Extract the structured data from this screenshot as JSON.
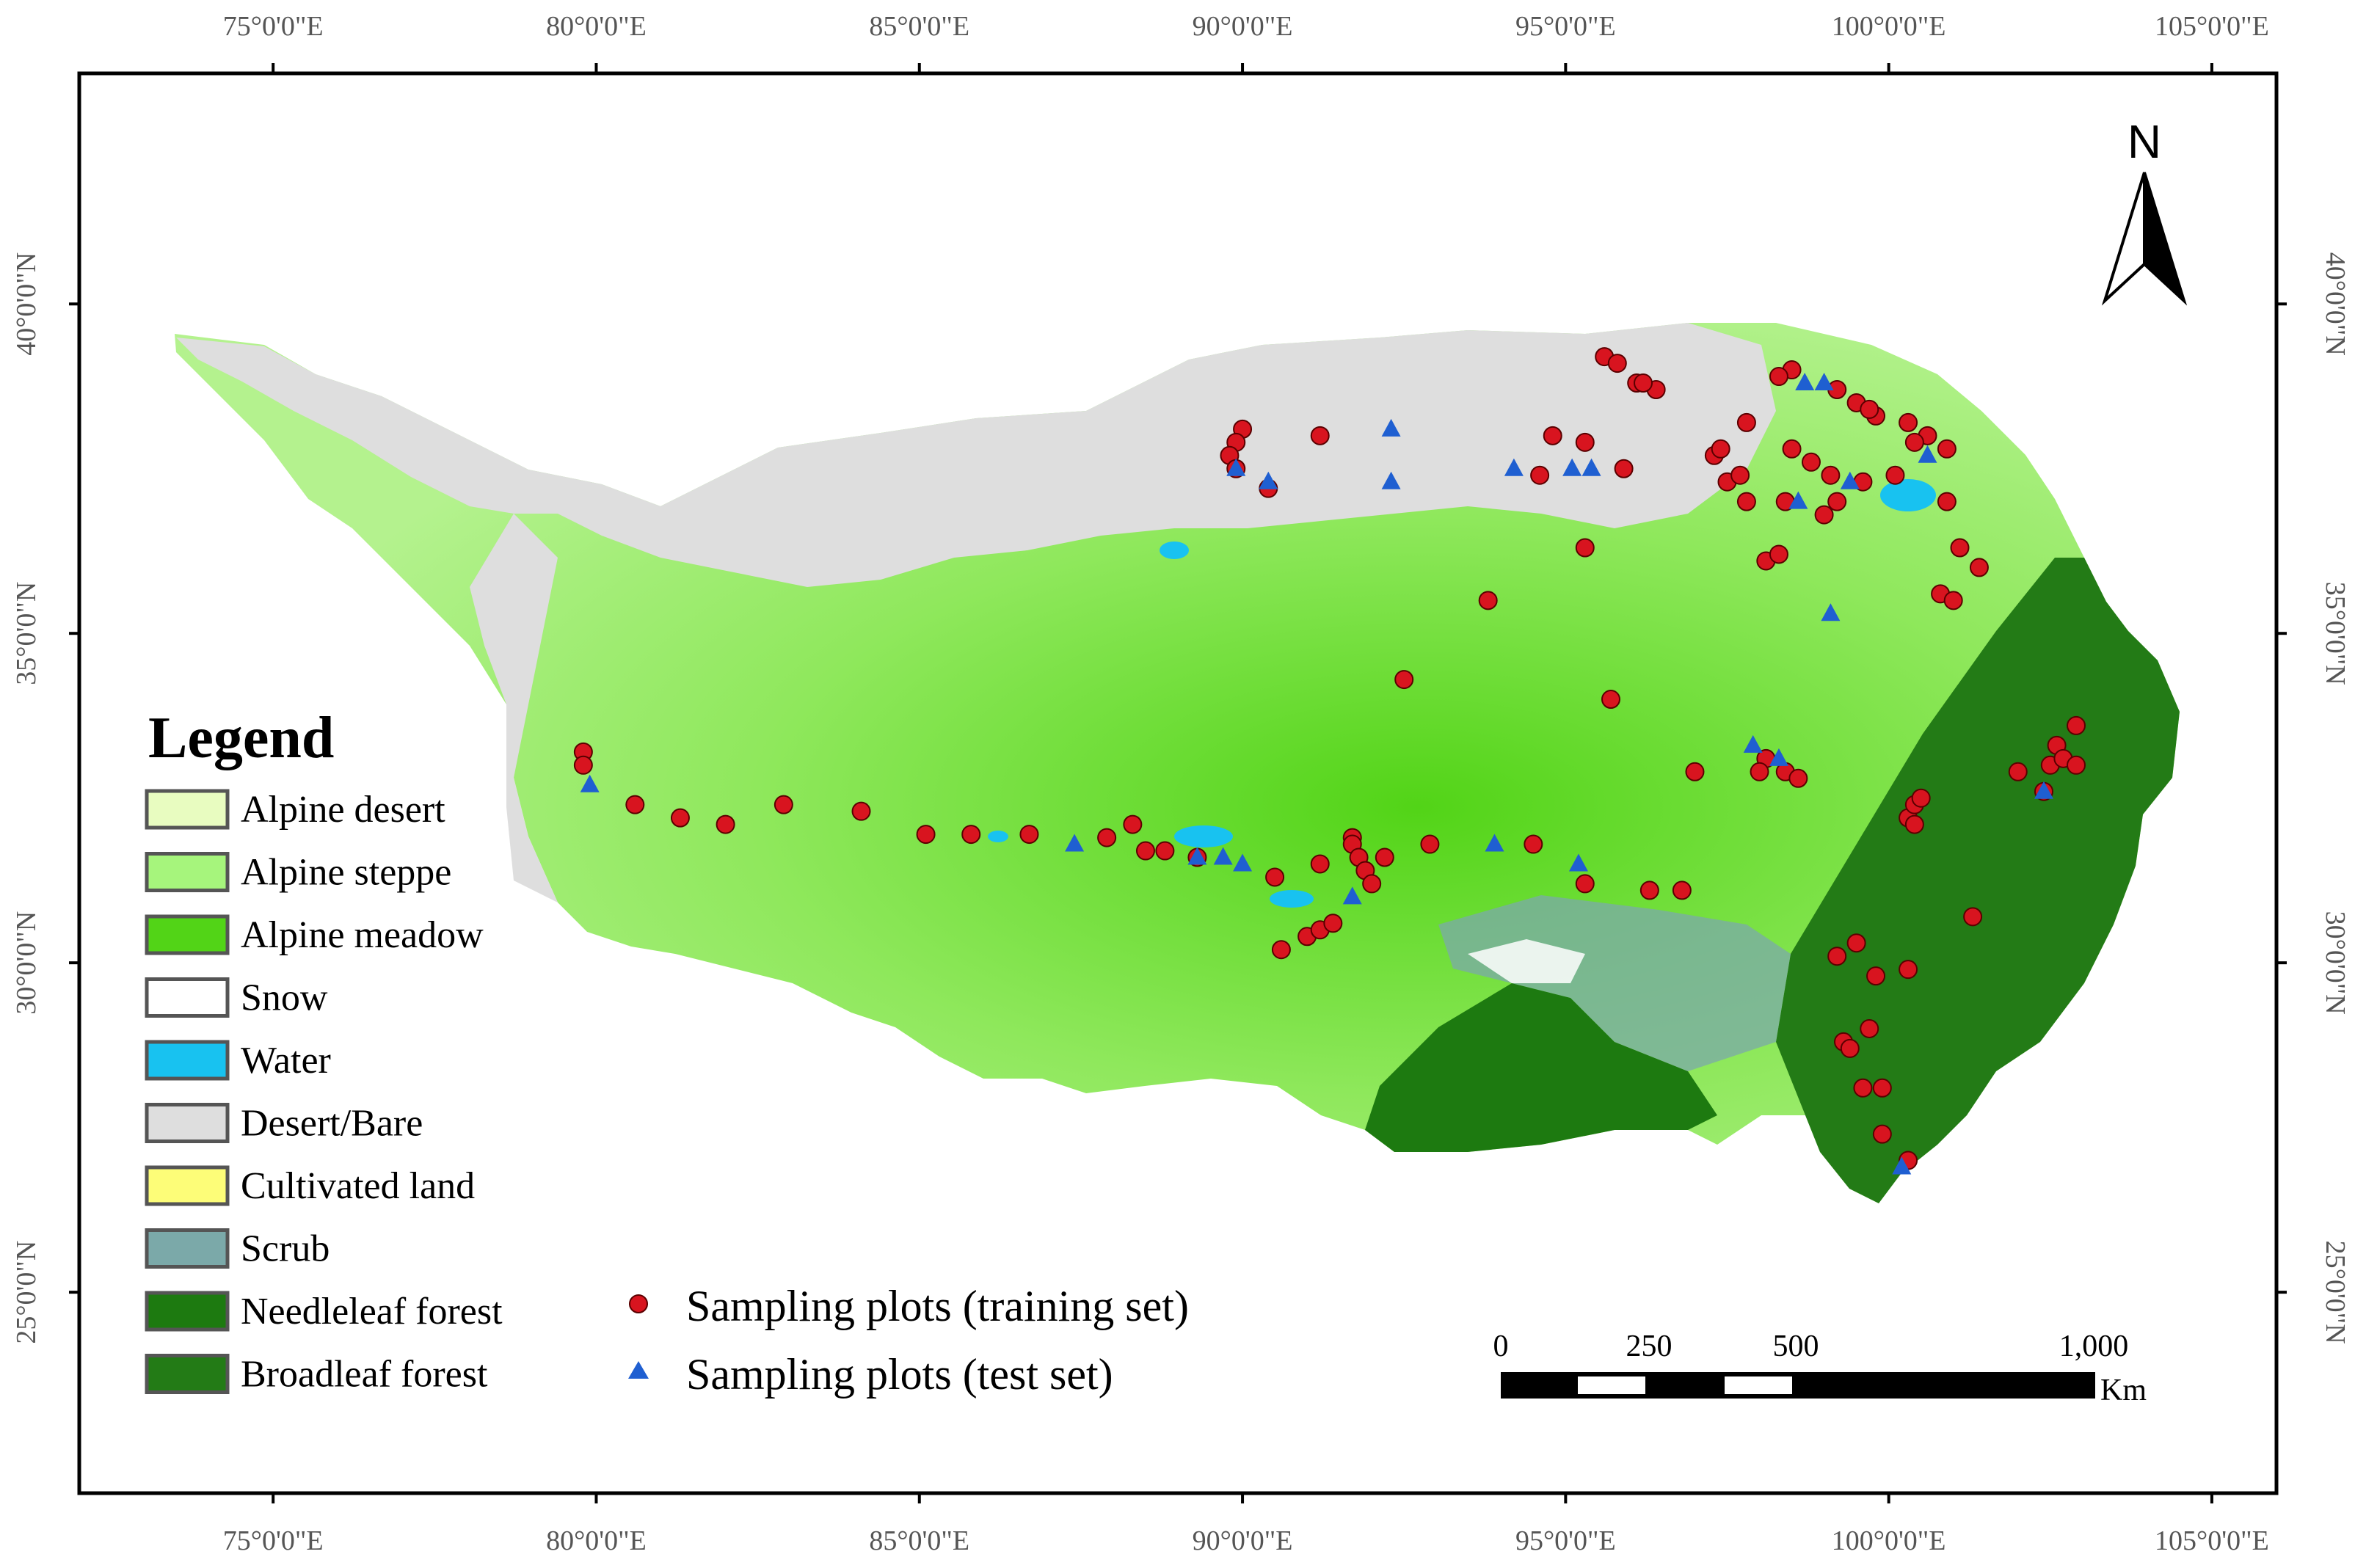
{
  "map": {
    "lon_labels": [
      "75°0'0\"E",
      "80°0'0\"E",
      "85°0'0\"E",
      "90°0'0\"E",
      "95°0'0\"E",
      "100°0'0\"E",
      "105°0'0\"E"
    ],
    "lat_labels": [
      "40°0'0\"N",
      "35°0'0\"N",
      "30°0'0\"N",
      "25°0'0\"N"
    ],
    "lon_extent": [
      72,
      106
    ],
    "lat_extent": [
      21.95,
      43.5
    ]
  },
  "legend": {
    "title": "Legend",
    "items": [
      {
        "label": "Alpine desert",
        "color": "#e8fcc0"
      },
      {
        "label": "Alpine steppe",
        "color": "#a6f57c"
      },
      {
        "label": "Alpine meadow",
        "color": "#52d417"
      },
      {
        "label": "Snow",
        "color": "#ffffff"
      },
      {
        "label": "Water",
        "color": "#18c2f0"
      },
      {
        "label": "Desert/Bare",
        "color": "#dedede"
      },
      {
        "label": "Cultivated land",
        "color": "#fdfd78"
      },
      {
        "label": "Scrub",
        "color": "#7ba9a9"
      },
      {
        "label": "Needleleaf forest",
        "color": "#1d7a10"
      },
      {
        "label": "Broadleaf forest",
        "color": "#237b16"
      }
    ]
  },
  "samples": {
    "training_label": "Sampling plots (training set)",
    "test_label": "Sampling plots (test set)",
    "training_color": "#d8141f",
    "test_color": "#1f5fd1",
    "training": [
      [
        79.8,
        33.2
      ],
      [
        79.8,
        33.0
      ],
      [
        80.6,
        32.4
      ],
      [
        81.3,
        32.2
      ],
      [
        82.0,
        32.1
      ],
      [
        82.9,
        32.4
      ],
      [
        84.1,
        32.3
      ],
      [
        85.1,
        31.95
      ],
      [
        85.8,
        31.95
      ],
      [
        86.7,
        31.95
      ],
      [
        87.9,
        31.9
      ],
      [
        88.3,
        32.1
      ],
      [
        88.5,
        31.7
      ],
      [
        88.8,
        31.7
      ],
      [
        89.3,
        31.6
      ],
      [
        90.5,
        31.3
      ],
      [
        90.6,
        30.2
      ],
      [
        91.0,
        30.4
      ],
      [
        91.2,
        30.5
      ],
      [
        91.4,
        30.6
      ],
      [
        91.2,
        31.5
      ],
      [
        91.7,
        31.9
      ],
      [
        91.7,
        31.8
      ],
      [
        91.8,
        31.6
      ],
      [
        91.9,
        31.4
      ],
      [
        92.0,
        31.2
      ],
      [
        92.2,
        31.6
      ],
      [
        92.9,
        31.8
      ],
      [
        94.5,
        31.8
      ],
      [
        95.3,
        31.2
      ],
      [
        96.3,
        31.1
      ],
      [
        96.8,
        31.1
      ],
      [
        97.0,
        32.9
      ],
      [
        98.1,
        33.1
      ],
      [
        98.4,
        32.9
      ],
      [
        98.6,
        32.8
      ],
      [
        98.0,
        32.9
      ],
      [
        99.2,
        30.1
      ],
      [
        99.5,
        30.3
      ],
      [
        99.8,
        29.8
      ],
      [
        100.3,
        29.9
      ],
      [
        99.7,
        29.0
      ],
      [
        99.3,
        28.8
      ],
      [
        99.4,
        28.7
      ],
      [
        99.6,
        28.1
      ],
      [
        99.9,
        28.1
      ],
      [
        99.9,
        27.4
      ],
      [
        100.3,
        27.0
      ],
      [
        100.3,
        32.2
      ],
      [
        100.4,
        32.4
      ],
      [
        100.5,
        32.5
      ],
      [
        100.4,
        32.1
      ],
      [
        101.3,
        30.7
      ],
      [
        102.0,
        32.9
      ],
      [
        102.4,
        32.6
      ],
      [
        102.5,
        33.0
      ],
      [
        102.6,
        33.3
      ],
      [
        102.7,
        33.1
      ],
      [
        102.9,
        33.0
      ],
      [
        102.9,
        33.6
      ],
      [
        90.0,
        38.1
      ],
      [
        89.9,
        37.9
      ],
      [
        89.8,
        37.7
      ],
      [
        89.9,
        37.5
      ],
      [
        90.4,
        37.2
      ],
      [
        91.2,
        38.0
      ],
      [
        93.8,
        35.5
      ],
      [
        92.5,
        34.3
      ],
      [
        95.7,
        34.0
      ],
      [
        95.3,
        36.3
      ],
      [
        94.8,
        38.0
      ],
      [
        95.3,
        37.9
      ],
      [
        95.9,
        37.5
      ],
      [
        94.6,
        37.4
      ],
      [
        95.6,
        39.2
      ],
      [
        95.8,
        39.1
      ],
      [
        96.1,
        38.8
      ],
      [
        96.4,
        38.7
      ],
      [
        96.2,
        38.8
      ],
      [
        97.8,
        38.2
      ],
      [
        98.5,
        39.0
      ],
      [
        98.3,
        38.9
      ],
      [
        99.2,
        38.7
      ],
      [
        99.5,
        38.5
      ],
      [
        99.8,
        38.3
      ],
      [
        100.3,
        38.2
      ],
      [
        100.6,
        38.0
      ],
      [
        100.9,
        37.8
      ],
      [
        100.4,
        37.9
      ],
      [
        98.5,
        37.8
      ],
      [
        98.8,
        37.6
      ],
      [
        99.1,
        37.4
      ],
      [
        99.6,
        37.3
      ],
      [
        100.1,
        37.4
      ],
      [
        99.2,
        37.0
      ],
      [
        98.4,
        37.0
      ],
      [
        99.0,
        36.8
      ],
      [
        97.8,
        37.0
      ],
      [
        97.5,
        37.3
      ],
      [
        97.3,
        37.7
      ],
      [
        97.7,
        37.4
      ],
      [
        98.1,
        36.1
      ],
      [
        98.3,
        36.2
      ],
      [
        100.9,
        37.0
      ],
      [
        101.1,
        36.3
      ],
      [
        101.4,
        36.0
      ],
      [
        100.8,
        35.6
      ],
      [
        101.0,
        35.5
      ],
      [
        97.4,
        37.8
      ],
      [
        99.7,
        38.4
      ]
    ],
    "test": [
      [
        79.9,
        32.7
      ],
      [
        87.4,
        31.8
      ],
      [
        89.3,
        31.6
      ],
      [
        89.7,
        31.6
      ],
      [
        90.0,
        31.5
      ],
      [
        91.7,
        31.0
      ],
      [
        93.9,
        31.8
      ],
      [
        95.2,
        31.5
      ],
      [
        89.9,
        37.5
      ],
      [
        90.4,
        37.3
      ],
      [
        92.3,
        38.1
      ],
      [
        92.3,
        37.3
      ],
      [
        94.2,
        37.5
      ],
      [
        95.1,
        37.5
      ],
      [
        95.4,
        37.5
      ],
      [
        97.9,
        33.3
      ],
      [
        98.3,
        33.1
      ],
      [
        99.1,
        35.3
      ],
      [
        98.6,
        37.0
      ],
      [
        99.4,
        37.3
      ],
      [
        98.7,
        38.8
      ],
      [
        99.0,
        38.8
      ],
      [
        100.6,
        37.7
      ],
      [
        102.4,
        32.6
      ],
      [
        100.2,
        26.9
      ]
    ]
  },
  "scale_bar": {
    "labels": [
      "0",
      "250",
      "500",
      "1,000"
    ],
    "unit": "Km"
  },
  "north_arrow": {
    "label": "N"
  }
}
